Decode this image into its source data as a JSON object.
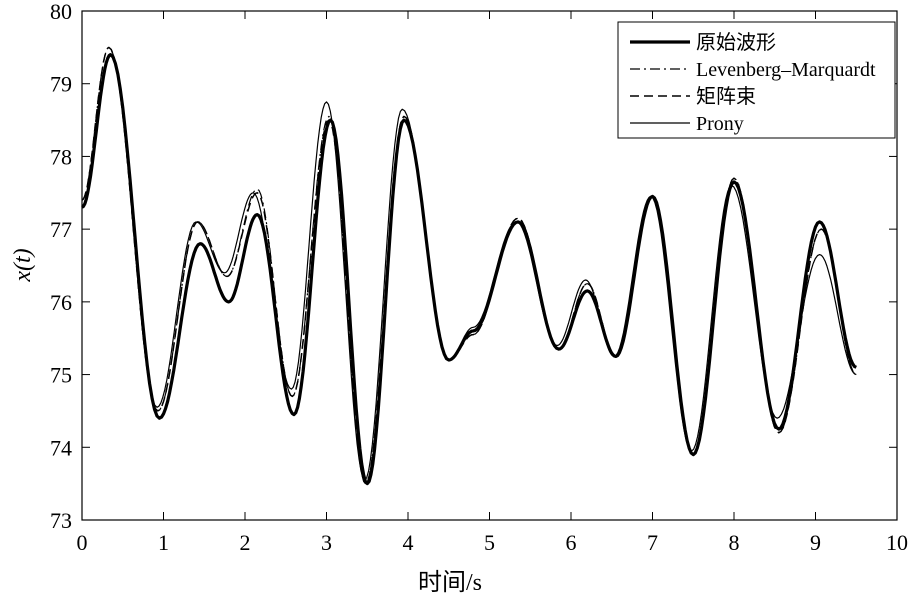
{
  "chart_data": {
    "type": "line",
    "title": "",
    "xlabel": "时间/s",
    "ylabel": "x(t)",
    "xlim": [
      0,
      10
    ],
    "ylim": [
      73,
      80
    ],
    "xticks": [
      "0",
      "1",
      "2",
      "3",
      "4",
      "5",
      "6",
      "7",
      "8",
      "9",
      "10"
    ],
    "yticks": [
      "73",
      "74",
      "75",
      "76",
      "77",
      "78",
      "79",
      "80"
    ],
    "grid": false,
    "legend_position": "top-right",
    "series": [
      {
        "name": "原始波形",
        "style": "thick-solid",
        "color": "#000000",
        "points": [
          [
            0,
            77.3
          ],
          [
            0.35,
            79.4
          ],
          [
            0.95,
            74.4
          ],
          [
            1.45,
            76.8
          ],
          [
            1.8,
            76.0
          ],
          [
            2.15,
            77.2
          ],
          [
            2.6,
            74.45
          ],
          [
            3.05,
            78.5
          ],
          [
            3.5,
            73.5
          ],
          [
            3.95,
            78.5
          ],
          [
            4.5,
            75.2
          ],
          [
            4.8,
            75.6
          ],
          [
            5.35,
            77.1
          ],
          [
            5.85,
            75.35
          ],
          [
            6.2,
            76.15
          ],
          [
            6.55,
            75.25
          ],
          [
            7.0,
            77.45
          ],
          [
            7.5,
            73.9
          ],
          [
            8.0,
            77.65
          ],
          [
            8.55,
            74.25
          ],
          [
            9.05,
            77.1
          ],
          [
            9.5,
            75.1
          ]
        ]
      },
      {
        "name": "Levenberg–Marquardt",
        "style": "dash-dot",
        "color": "#000000",
        "points": [
          [
            0,
            77.4
          ],
          [
            0.33,
            79.5
          ],
          [
            0.93,
            74.5
          ],
          [
            1.42,
            77.1
          ],
          [
            1.78,
            76.35
          ],
          [
            2.15,
            77.55
          ],
          [
            2.58,
            74.7
          ],
          [
            3.03,
            78.55
          ],
          [
            3.48,
            73.5
          ],
          [
            3.95,
            78.55
          ],
          [
            4.5,
            75.2
          ],
          [
            4.8,
            75.55
          ],
          [
            5.35,
            77.15
          ],
          [
            5.85,
            75.35
          ],
          [
            6.2,
            76.25
          ],
          [
            6.55,
            75.25
          ],
          [
            7.0,
            77.45
          ],
          [
            7.5,
            73.9
          ],
          [
            8.0,
            77.7
          ],
          [
            8.55,
            74.2
          ],
          [
            9.07,
            77.0
          ],
          [
            9.5,
            75.0
          ]
        ]
      },
      {
        "name": "矩阵束",
        "style": "dashed",
        "color": "#000000",
        "points": [
          [
            0,
            77.4
          ],
          [
            0.33,
            79.5
          ],
          [
            0.93,
            74.5
          ],
          [
            1.42,
            77.1
          ],
          [
            1.78,
            76.35
          ],
          [
            2.15,
            77.5
          ],
          [
            2.58,
            74.7
          ],
          [
            3.03,
            78.5
          ],
          [
            3.48,
            73.5
          ],
          [
            3.95,
            78.55
          ],
          [
            4.5,
            75.2
          ],
          [
            4.8,
            75.55
          ],
          [
            5.35,
            77.15
          ],
          [
            5.85,
            75.35
          ],
          [
            6.2,
            76.25
          ],
          [
            6.55,
            75.25
          ],
          [
            7.0,
            77.45
          ],
          [
            7.5,
            73.9
          ],
          [
            8.0,
            77.7
          ],
          [
            8.55,
            74.2
          ],
          [
            9.07,
            77.0
          ],
          [
            9.5,
            75.0
          ]
        ]
      },
      {
        "name": "Prony",
        "style": "thin-solid",
        "color": "#000000",
        "points": [
          [
            0,
            77.3
          ],
          [
            0.35,
            79.4
          ],
          [
            0.92,
            74.55
          ],
          [
            1.4,
            77.1
          ],
          [
            1.75,
            76.4
          ],
          [
            2.1,
            77.5
          ],
          [
            2.57,
            74.8
          ],
          [
            3.0,
            78.75
          ],
          [
            3.47,
            73.55
          ],
          [
            3.93,
            78.65
          ],
          [
            4.5,
            75.2
          ],
          [
            4.8,
            75.65
          ],
          [
            5.33,
            77.1
          ],
          [
            5.83,
            75.4
          ],
          [
            6.18,
            76.3
          ],
          [
            6.53,
            75.25
          ],
          [
            6.98,
            77.45
          ],
          [
            7.48,
            73.95
          ],
          [
            7.97,
            77.6
          ],
          [
            8.53,
            74.4
          ],
          [
            9.05,
            76.65
          ],
          [
            9.5,
            75.0
          ]
        ]
      }
    ]
  }
}
